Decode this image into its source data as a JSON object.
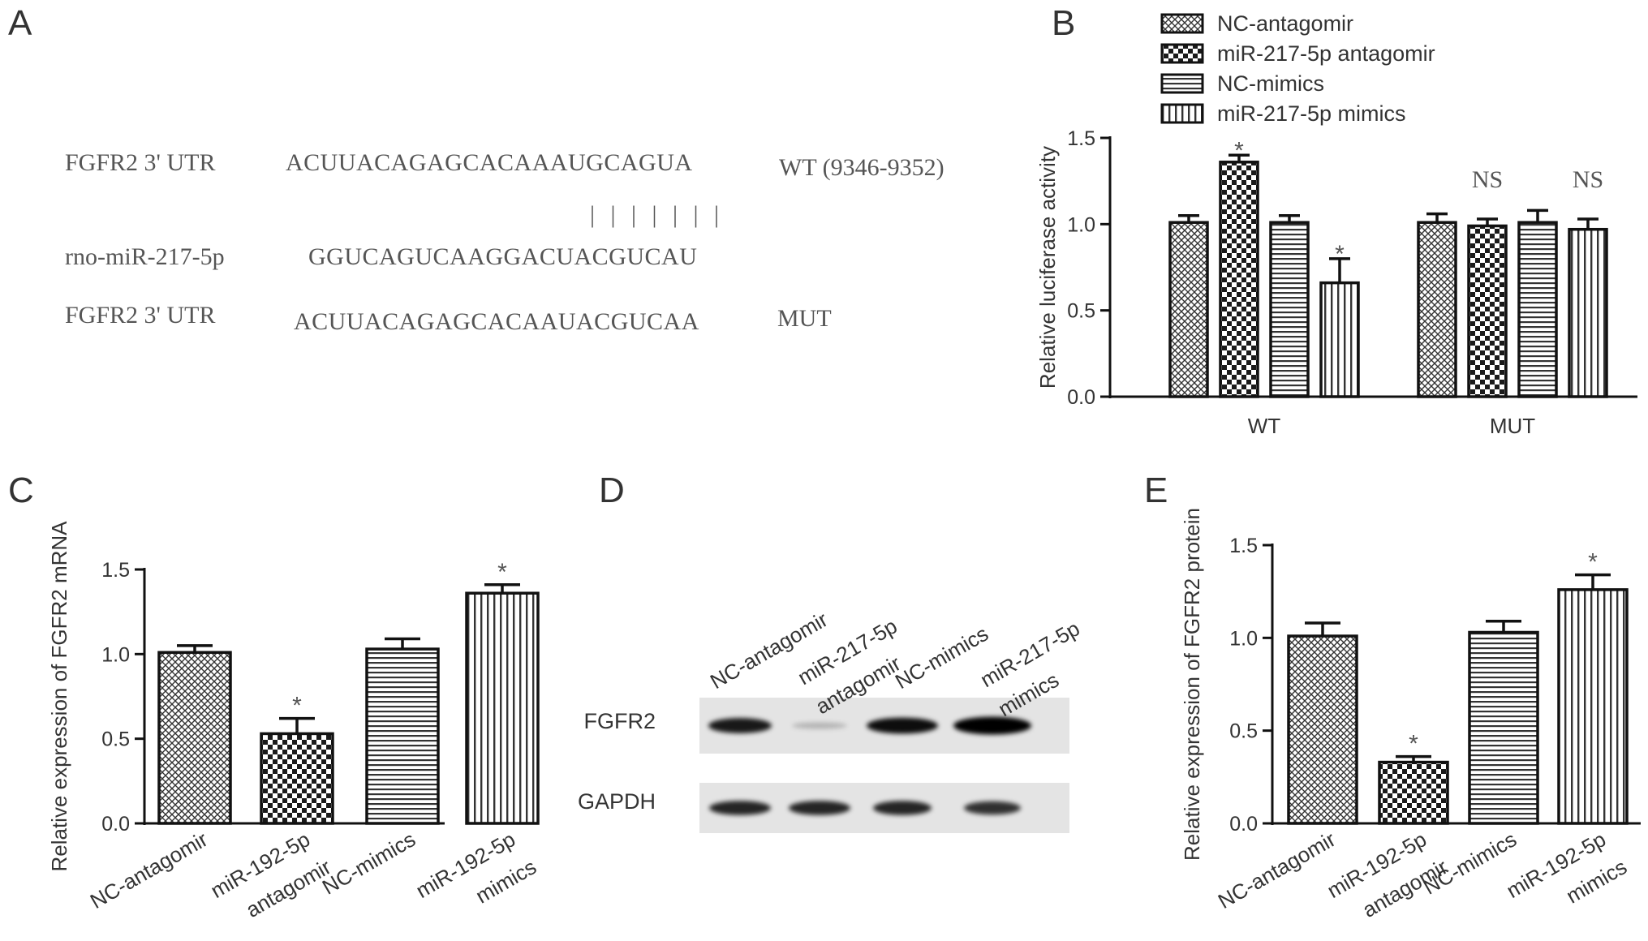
{
  "panels": {
    "a": "A",
    "b": "B",
    "c": "C",
    "d": "D",
    "e": "E"
  },
  "panel_a": {
    "row1_label": "FGFR2 3' UTR",
    "row1_seq": "ACUUACAGAGCACAAAUGCAGUA",
    "row1_tag": "WT (9346-9352)",
    "pairing": "| | | | | | |",
    "row2_label": "rno-miR-217-5p",
    "row2_seq": "GGUCAGUCAAGGACUACGUCAU",
    "row3_label": "FGFR2 3' UTR",
    "row3_seq": "ACUUACAGAGCACAAUACGUCAA",
    "row3_tag": "MUT"
  },
  "panel_d": {
    "lane_labels": [
      [
        "NC-antagomir"
      ],
      [
        "miR-217-5p",
        "antagomir"
      ],
      [
        "NC-mimics"
      ],
      [
        "miR-217-5p",
        "mimics"
      ]
    ],
    "row_labels": [
      "FGFR2",
      "GAPDH"
    ],
    "fgfr2_intensity": [
      0.85,
      0.2,
      0.9,
      1.0
    ],
    "gapdh_intensity": [
      0.8,
      0.8,
      0.8,
      0.75
    ]
  },
  "chart_data": [
    {
      "id": "B",
      "type": "bar",
      "categories": [
        "WT",
        "MUT"
      ],
      "ylabel": "Relative luciferase activity",
      "ylim": [
        0,
        1.5
      ],
      "yticks": [
        "0.0",
        "0.5",
        "1.0",
        "1.5"
      ],
      "legend_position": "top",
      "series": [
        {
          "name": "NC-antagomir",
          "values": [
            1.01,
            1.01
          ],
          "errors": [
            0.04,
            0.05
          ],
          "pattern": "cross-fine"
        },
        {
          "name": "miR-217-5p  antagomir",
          "values": [
            1.36,
            0.99
          ],
          "errors": [
            0.04,
            0.04
          ],
          "pattern": "checker"
        },
        {
          "name": "NC-mimics",
          "values": [
            1.01,
            1.01
          ],
          "errors": [
            0.04,
            0.07
          ],
          "pattern": "hlines"
        },
        {
          "name": "miR-217-5p  mimics",
          "values": [
            0.66,
            0.97
          ],
          "errors": [
            0.14,
            0.06
          ],
          "pattern": "vlines"
        }
      ],
      "annotations": [
        [
          "*",
          "*"
        ],
        [
          "NS",
          "NS"
        ]
      ]
    },
    {
      "id": "C",
      "type": "bar",
      "categories": [
        [
          "NC-antagomir"
        ],
        [
          "miR-192-5p",
          "antagomir"
        ],
        [
          "NC-mimics"
        ],
        [
          "miR-192-5p",
          "mimics"
        ]
      ],
      "values": [
        1.01,
        0.53,
        1.03,
        1.36
      ],
      "errors": [
        0.04,
        0.09,
        0.06,
        0.05
      ],
      "patterns": [
        "cross-fine",
        "checker",
        "hlines",
        "vlines"
      ],
      "ylabel": "Relative expression of FGFR2 mRNA",
      "ylim": [
        0,
        1.5
      ],
      "yticks": [
        "0.0",
        "0.5",
        "1.0",
        "1.5"
      ],
      "annotations": [
        "",
        "*",
        "",
        "*"
      ]
    },
    {
      "id": "E",
      "type": "bar",
      "categories": [
        [
          "NC-antagomir"
        ],
        [
          "miR-192-5p",
          "antagomir"
        ],
        [
          "NC-mimics"
        ],
        [
          "miR-192-5p",
          "mimics"
        ]
      ],
      "values": [
        1.01,
        0.33,
        1.03,
        1.26
      ],
      "errors": [
        0.07,
        0.03,
        0.06,
        0.08
      ],
      "patterns": [
        "cross-fine",
        "checker",
        "hlines",
        "vlines"
      ],
      "ylabel": "Relative expression of FGFR2 protein",
      "ylim": [
        0,
        1.5
      ],
      "yticks": [
        "0.0",
        "0.5",
        "1.0",
        "1.5"
      ],
      "annotations": [
        "",
        "*",
        "",
        "*"
      ]
    }
  ]
}
